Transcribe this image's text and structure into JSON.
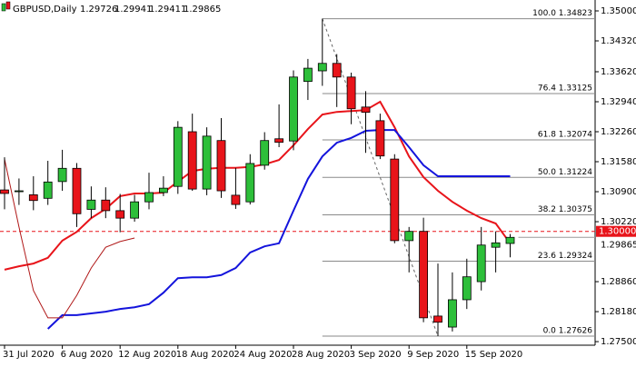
{
  "chart_data": {
    "type": "candlestick",
    "symbol": "GBPUSD,Daily",
    "categories": [
      "31 Jul 2020",
      null,
      null,
      null,
      "6 Aug 2020",
      null,
      null,
      null,
      "12 Aug 2020",
      null,
      null,
      null,
      "18 Aug 2020",
      null,
      null,
      null,
      "24 Aug 2020",
      null,
      null,
      null,
      "28 Aug 2020",
      null,
      null,
      null,
      "3 Sep 2020",
      null,
      null,
      null,
      "9 Sep 2020",
      null,
      null,
      null,
      "15 Sep 2020",
      null,
      null,
      null
    ],
    "open": [
      1.3094,
      1.309,
      1.3083,
      1.3075,
      1.3113,
      1.3143,
      1.305,
      1.3071,
      1.3047,
      1.303,
      1.3067,
      1.3088,
      1.3102,
      1.3226,
      1.3096,
      1.3206,
      1.3082,
      1.3067,
      1.315,
      1.321,
      1.3205,
      1.334,
      1.3364,
      1.3381,
      1.335,
      1.3282,
      1.3251,
      1.3164,
      1.2979,
      1.3,
      1.2808,
      1.2783,
      1.2845,
      1.2886,
      1.2964,
      1.29726
    ],
    "high": [
      1.3168,
      1.312,
      1.3125,
      1.316,
      1.3185,
      1.3155,
      1.3102,
      1.31,
      1.3085,
      1.3083,
      1.3133,
      1.3125,
      1.325,
      1.3267,
      1.3236,
      1.3257,
      1.3144,
      1.3175,
      1.3225,
      1.3288,
      1.3365,
      1.3391,
      1.34823,
      1.3402,
      1.336,
      1.3318,
      1.3267,
      1.3175,
      1.301,
      1.3031,
      1.2927,
      1.2907,
      1.2938,
      1.301,
      1.3,
      1.29941
    ],
    "low": [
      1.305,
      1.306,
      1.3048,
      1.306,
      1.3092,
      1.301,
      1.303,
      1.303,
      1.2998,
      1.3022,
      1.305,
      1.308,
      1.3085,
      1.3092,
      1.3082,
      1.3076,
      1.3051,
      1.3061,
      1.314,
      1.3191,
      1.3184,
      1.3298,
      1.333,
      1.3282,
      1.3243,
      1.3178,
      1.3164,
      1.2973,
      1.2907,
      1.2794,
      1.27626,
      1.2773,
      1.2824,
      1.2866,
      1.2907,
      1.29411
    ],
    "close": [
      1.3086,
      1.3092,
      1.307,
      1.3112,
      1.3143,
      1.304,
      1.3071,
      1.3047,
      1.303,
      1.3067,
      1.3088,
      1.3098,
      1.3236,
      1.3096,
      1.3216,
      1.3092,
      1.3061,
      1.3154,
      1.3206,
      1.3202,
      1.335,
      1.337,
      1.3381,
      1.335,
      1.3278,
      1.327,
      1.3171,
      1.2979,
      1.3,
      1.2804,
      1.2794,
      1.2845,
      1.2897,
      1.2969,
      1.2974,
      1.29865
    ],
    "up_color": "#2dbf3a",
    "down_color": "#e8141a",
    "lines": [
      {
        "color": "#e8141a",
        "width": 2,
        "values": [
          1.2913,
          1.2921,
          1.2927,
          1.294,
          1.2979,
          1.2999,
          1.303,
          1.3051,
          1.308,
          1.3086,
          1.3086,
          1.3088,
          1.3113,
          1.3137,
          1.3142,
          1.3144,
          1.3144,
          1.3146,
          1.3152,
          1.3162,
          1.3195,
          1.3232,
          1.3265,
          1.3271,
          1.3273,
          1.3275,
          1.3294,
          1.3236,
          1.317,
          1.3123,
          1.3092,
          1.3067,
          1.3047,
          1.303,
          1.3018,
          1.2973
        ]
      },
      {
        "color": "#1414dc",
        "width": 2,
        "values": [
          null,
          null,
          null,
          1.2779,
          1.281,
          1.281,
          1.2814,
          1.2818,
          1.2824,
          1.2828,
          1.2835,
          1.2861,
          1.2894,
          1.2896,
          1.2896,
          1.2901,
          1.2917,
          1.2952,
          1.2966,
          1.2973,
          1.3047,
          1.3119,
          1.317,
          1.3201,
          1.3212,
          1.3228,
          1.323,
          1.323,
          1.3191,
          1.315,
          1.3125,
          1.3125,
          1.3125,
          1.3125,
          1.3125,
          1.3125
        ]
      },
      {
        "color": "#b01818",
        "width": 1,
        "values": [
          1.3164,
          1.301,
          1.2866,
          1.2804,
          1.2804,
          1.2855,
          1.2917,
          1.2964,
          1.2977,
          1.2985,
          null,
          null,
          null,
          null,
          null,
          null,
          null,
          null,
          null,
          null,
          null,
          null,
          null,
          null,
          null,
          null,
          null,
          null,
          null,
          null,
          null,
          null,
          null,
          null,
          null,
          null
        ]
      }
    ],
    "fib_levels": [
      {
        "value": 1.34823,
        "label": "100.0 1.34823"
      },
      {
        "value": 1.33125,
        "label": "76.4 1.33125"
      },
      {
        "value": 1.32074,
        "label": "61.8 1.32074"
      },
      {
        "value": 1.31224,
        "label": "50.0 1.31224"
      },
      {
        "value": 1.30375,
        "label": "38.2 1.30375"
      },
      {
        "value": 1.29324,
        "label": "23.6 1.29324"
      },
      {
        "value": 1.27626,
        "label": "0.0 1.27626"
      }
    ],
    "fib_color": "#8a8a8a",
    "levels": [
      {
        "value": 1.3,
        "label": "1.30000",
        "color": "#e8141a"
      }
    ],
    "ylim": [
      1.27419,
      1.35247
    ],
    "yticks": [
      {
        "value": 1.35,
        "label": "1.35000"
      },
      {
        "value": 1.3432,
        "label": "1.34320"
      },
      {
        "value": 1.3362,
        "label": "1.33620"
      },
      {
        "value": 1.3294,
        "label": "1.32940"
      },
      {
        "value": 1.3226,
        "label": "1.32260"
      },
      {
        "value": 1.3158,
        "label": "1.31580"
      },
      {
        "value": 1.309,
        "label": "1.30900"
      },
      {
        "value": 1.3022,
        "label": "1.30220"
      },
      {
        "value": 1.2886,
        "label": "1.28860"
      },
      {
        "value": 1.2818,
        "label": "1.28180"
      },
      {
        "value": 1.275,
        "label": "1.27500"
      }
    ]
  }
}
